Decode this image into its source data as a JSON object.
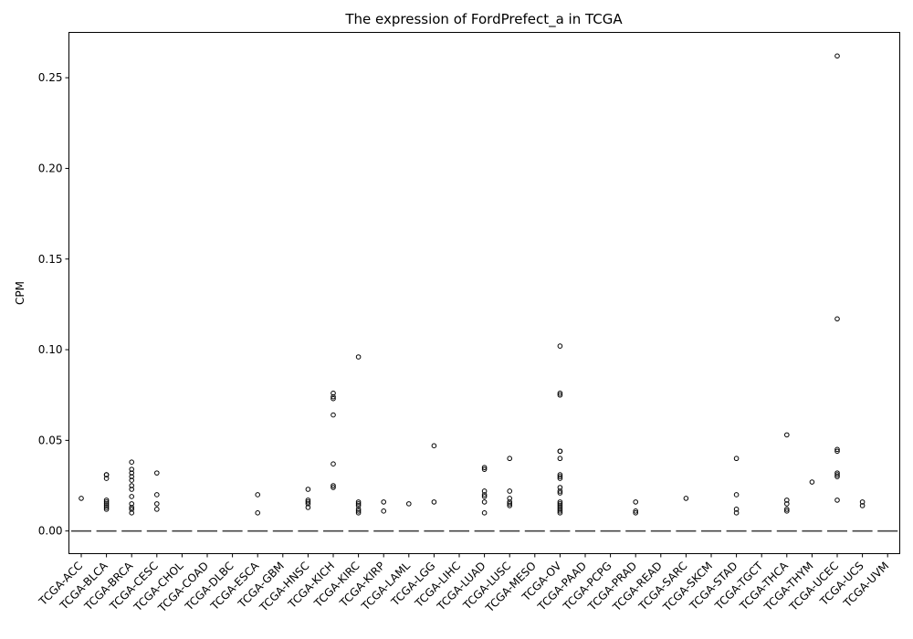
{
  "chart_data": {
    "type": "box",
    "title": "The expression of FordPrefect_a in TCGA",
    "xlabel": "",
    "ylabel": "CPM",
    "ylim": [
      -0.0125,
      0.275
    ],
    "yticks": [
      0.0,
      0.05,
      0.1,
      0.15,
      0.2,
      0.25
    ],
    "ytick_labels": [
      "0.00",
      "0.05",
      "0.10",
      "0.15",
      "0.20",
      "0.25"
    ],
    "grid": false,
    "categories": [
      "TCGA-ACC",
      "TCGA-BLCA",
      "TCGA-BRCA",
      "TCGA-CESC",
      "TCGA-CHOL",
      "TCGA-COAD",
      "TCGA-DLBC",
      "TCGA-ESCA",
      "TCGA-GBM",
      "TCGA-HNSC",
      "TCGA-KICH",
      "TCGA-KIRC",
      "TCGA-KIRP",
      "TCGA-LAML",
      "TCGA-LGG",
      "TCGA-LIHC",
      "TCGA-LUAD",
      "TCGA-LUSC",
      "TCGA-MESO",
      "TCGA-OV",
      "TCGA-PAAD",
      "TCGA-PCPG",
      "TCGA-PRAD",
      "TCGA-READ",
      "TCGA-SARC",
      "TCGA-SKCM",
      "TCGA-STAD",
      "TCGA-TGCT",
      "TCGA-THCA",
      "TCGA-THYM",
      "TCGA-UCEC",
      "TCGA-UCS",
      "TCGA-UVM"
    ],
    "medians": [
      0,
      0,
      0,
      0,
      0,
      0,
      0,
      0,
      0,
      0,
      0,
      0,
      0,
      0,
      0,
      0,
      0,
      0,
      0,
      0,
      0,
      0,
      0,
      0,
      0,
      0,
      0,
      0,
      0,
      0,
      0,
      0,
      0
    ],
    "outliers": [
      [
        0.018
      ],
      [
        0.031,
        0.031,
        0.029,
        0.017,
        0.016,
        0.015,
        0.014,
        0.013,
        0.012
      ],
      [
        0.038,
        0.034,
        0.032,
        0.03,
        0.028,
        0.025,
        0.023,
        0.019,
        0.015,
        0.013,
        0.012,
        0.01
      ],
      [
        0.032,
        0.02,
        0.015,
        0.012
      ],
      [],
      [],
      [],
      [
        0.02,
        0.01
      ],
      [],
      [
        0.023,
        0.017,
        0.016,
        0.015,
        0.013
      ],
      [
        0.076,
        0.074,
        0.073,
        0.064,
        0.037,
        0.025,
        0.024
      ],
      [
        0.096,
        0.016,
        0.015,
        0.014,
        0.012,
        0.011,
        0.01
      ],
      [
        0.016,
        0.011
      ],
      [
        0.015
      ],
      [
        0.047,
        0.016
      ],
      [],
      [
        0.035,
        0.034,
        0.022,
        0.02,
        0.019,
        0.016,
        0.01
      ],
      [
        0.04,
        0.022,
        0.018,
        0.016,
        0.015,
        0.014
      ],
      [],
      [
        0.102,
        0.076,
        0.075,
        0.044,
        0.044,
        0.04,
        0.031,
        0.03,
        0.029,
        0.024,
        0.022,
        0.021,
        0.016,
        0.015,
        0.014,
        0.013,
        0.012,
        0.011,
        0.01
      ],
      [],
      [],
      [
        0.016,
        0.011,
        0.01
      ],
      [],
      [
        0.018
      ],
      [],
      [
        0.04,
        0.02,
        0.012,
        0.01
      ],
      [],
      [
        0.053,
        0.017,
        0.015,
        0.012,
        0.011
      ],
      [
        0.027
      ],
      [
        0.262,
        0.117,
        0.045,
        0.044,
        0.032,
        0.031,
        0.03,
        0.017
      ],
      [
        0.016,
        0.014
      ],
      []
    ]
  }
}
